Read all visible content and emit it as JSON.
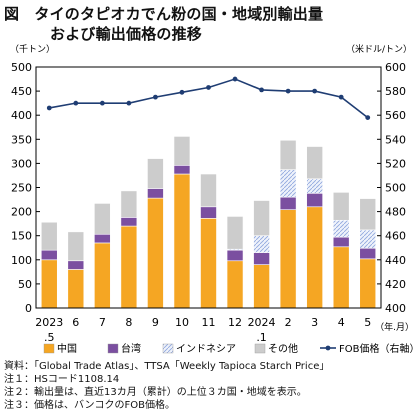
{
  "title": {
    "prefix": "図",
    "line1": "タイのタピオカでん粉の国・地域別輸出量",
    "line2": "および輸出価格の推移"
  },
  "chart_data": {
    "type": "bar",
    "stacked": true,
    "categories": [
      "2023\n.5",
      "6",
      "7",
      "8",
      "9",
      "10",
      "11",
      "12",
      "2024\n.1",
      "2",
      "3",
      "4",
      "5"
    ],
    "x_unit": "（年.月）",
    "y_left": {
      "unit": "（千トン）",
      "range": [
        0,
        500
      ],
      "ticks": [
        0,
        50,
        100,
        150,
        200,
        250,
        300,
        350,
        400,
        450,
        500
      ]
    },
    "y_right": {
      "unit": "（米ドル/トン）",
      "range": [
        400,
        600
      ],
      "ticks": [
        400,
        420,
        440,
        460,
        480,
        500,
        520,
        540,
        560,
        580,
        600
      ]
    },
    "series": [
      {
        "name": "中国",
        "kind": "bar",
        "color": "#f5a623",
        "values": [
          100,
          80,
          135,
          170,
          228,
          278,
          186,
          98,
          90,
          204,
          210,
          127,
          102
        ]
      },
      {
        "name": "台湾",
        "kind": "bar",
        "color": "#7b4fa0",
        "values": [
          20,
          18,
          18,
          18,
          20,
          18,
          24,
          22,
          25,
          26,
          28,
          20,
          22
        ]
      },
      {
        "name": "インドネシア",
        "kind": "bar",
        "color": "#c5d3f1",
        "pattern": "hatch",
        "values": [
          0,
          0,
          0,
          0,
          0,
          0,
          0,
          2,
          35,
          57,
          30,
          35,
          38
        ]
      },
      {
        "name": "その他",
        "kind": "bar",
        "color": "#cccccc",
        "values": [
          58,
          60,
          64,
          55,
          62,
          60,
          68,
          68,
          73,
          61,
          67,
          58,
          65
        ]
      },
      {
        "name": "FOB価格（右軸）",
        "kind": "line",
        "color": "#1f3d73",
        "values": [
          566,
          570,
          570,
          570,
          575,
          579,
          583,
          590,
          581,
          580,
          580,
          575,
          558
        ]
      }
    ],
    "grid": false,
    "legend": "bottom"
  },
  "notes": [
    "資料：「Global Trade Atlas」、TTSA「Weekly Tapioca Starch Price」",
    "注１：HSコード1108.14",
    "注２：輸出量は、直近13カ月（累計）の上位３カ国・地域を表示。",
    "注３：価格は、バンコクのFOB価格。"
  ]
}
